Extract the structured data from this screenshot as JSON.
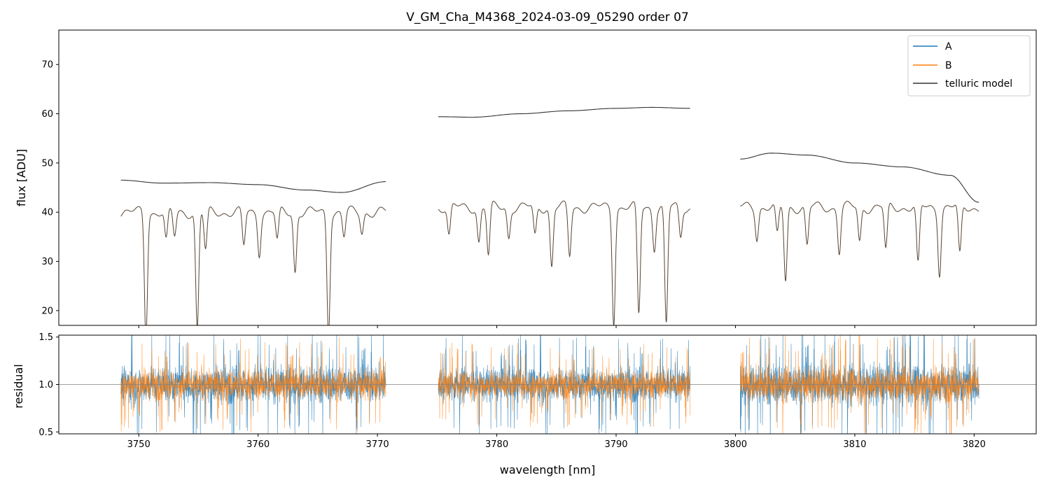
{
  "title": "V_GM_Cha_M4368_2024-03-09_05290  order 07",
  "colors": {
    "A": "#1f77b4",
    "B": "#ff7f0e",
    "model": "#000000",
    "frame": "#000000",
    "refline": "#808080"
  },
  "legend": [
    {
      "label": "A",
      "color": "#1f77b4"
    },
    {
      "label": "B",
      "color": "#ff7f0e"
    },
    {
      "label": "telluric model",
      "color": "#333333"
    }
  ],
  "chart_data": [
    {
      "id": "flux",
      "type": "line",
      "ylabel": "flux [ADU]",
      "xlim": [
        3743.3,
        3825.2
      ],
      "ylim": [
        17,
        77
      ],
      "yticks": [
        20,
        30,
        40,
        50,
        60,
        70
      ],
      "segments": [
        {
          "x_start": 3747.1,
          "x_end": 3772.0,
          "A_mean": 46,
          "B_mean": 41,
          "A_spread": 9,
          "B_spread": 7
        },
        {
          "x_start": 3773.7,
          "x_end": 3797.6,
          "A_mean": 61,
          "B_mean": 41,
          "A_spread": 11,
          "B_spread": 8
        },
        {
          "x_start": 3798.9,
          "x_end": 3821.8,
          "A_mean": 50,
          "B_mean": 41,
          "A_spread": 9,
          "B_spread": 7
        }
      ],
      "telluric_model_A": [
        {
          "x": [
            3748.5,
            3752,
            3756,
            3760,
            3764,
            3767,
            3770.7
          ],
          "y": [
            46.5,
            45.9,
            46.0,
            45.6,
            44.5,
            44.0,
            46.2
          ]
        },
        {
          "x": [
            3775.1,
            3778,
            3782,
            3786,
            3790,
            3793,
            3796.2
          ],
          "y": [
            59.4,
            59.3,
            60.0,
            60.6,
            61.1,
            61.3,
            61.1
          ]
        },
        {
          "x": [
            3800.4,
            3803,
            3806,
            3810,
            3814,
            3818,
            3820.4
          ],
          "y": [
            50.8,
            52.0,
            51.6,
            50.0,
            49.2,
            47.5,
            42.0
          ]
        }
      ],
      "telluric_model_B": [
        {
          "x_start": 3748.5,
          "x_end": 3770.7,
          "continuum": 40,
          "lines": [
            {
              "x": 3750.6,
              "depth": 25
            },
            {
              "x": 3752.3,
              "depth": 6
            },
            {
              "x": 3753.0,
              "depth": 5
            },
            {
              "x": 3754.9,
              "depth": 24
            },
            {
              "x": 3755.6,
              "depth": 8
            },
            {
              "x": 3758.8,
              "depth": 7
            },
            {
              "x": 3760.1,
              "depth": 8
            },
            {
              "x": 3761.6,
              "depth": 6
            },
            {
              "x": 3763.1,
              "depth": 12
            },
            {
              "x": 3765.9,
              "depth": 24
            },
            {
              "x": 3767.2,
              "depth": 5
            },
            {
              "x": 3768.7,
              "depth": 4
            }
          ]
        },
        {
          "x_start": 3775.1,
          "x_end": 3796.2,
          "continuum": 41,
          "lines": [
            {
              "x": 3776.0,
              "depth": 6
            },
            {
              "x": 3778.5,
              "depth": 7
            },
            {
              "x": 3779.3,
              "depth": 10
            },
            {
              "x": 3781.0,
              "depth": 6
            },
            {
              "x": 3783.2,
              "depth": 6
            },
            {
              "x": 3784.6,
              "depth": 12
            },
            {
              "x": 3786.1,
              "depth": 10
            },
            {
              "x": 3789.8,
              "depth": 23
            },
            {
              "x": 3791.9,
              "depth": 22
            },
            {
              "x": 3793.2,
              "depth": 8
            },
            {
              "x": 3794.2,
              "depth": 24
            },
            {
              "x": 3795.4,
              "depth": 6
            }
          ]
        },
        {
          "x_start": 3800.4,
          "x_end": 3820.4,
          "continuum": 41,
          "lines": [
            {
              "x": 3801.8,
              "depth": 6
            },
            {
              "x": 3803.5,
              "depth": 6
            },
            {
              "x": 3804.2,
              "depth": 15
            },
            {
              "x": 3806.0,
              "depth": 8
            },
            {
              "x": 3808.7,
              "depth": 9
            },
            {
              "x": 3810.4,
              "depth": 7
            },
            {
              "x": 3812.6,
              "depth": 9
            },
            {
              "x": 3815.3,
              "depth": 12
            },
            {
              "x": 3817.1,
              "depth": 13
            },
            {
              "x": 3818.8,
              "depth": 10
            }
          ]
        }
      ]
    },
    {
      "id": "residual",
      "type": "line",
      "xlabel": "wavelength [nm]",
      "ylabel": "residual",
      "xlim": [
        3743.3,
        3825.2
      ],
      "ylim": [
        0.48,
        1.52
      ],
      "xticks": [
        3750,
        3760,
        3770,
        3780,
        3790,
        3800,
        3810,
        3820
      ],
      "yticks": [
        0.5,
        1.0,
        1.5
      ],
      "reference_line": 1.0,
      "segments": [
        {
          "x_start": 3748.5,
          "x_end": 3770.7,
          "A_spread": 0.22,
          "B_spread": 0.18
        },
        {
          "x_start": 3775.1,
          "x_end": 3796.2,
          "A_spread": 0.2,
          "B_spread": 0.16
        },
        {
          "x_start": 3800.4,
          "x_end": 3820.4,
          "A_spread": 0.24,
          "B_spread": 0.2
        }
      ]
    }
  ]
}
